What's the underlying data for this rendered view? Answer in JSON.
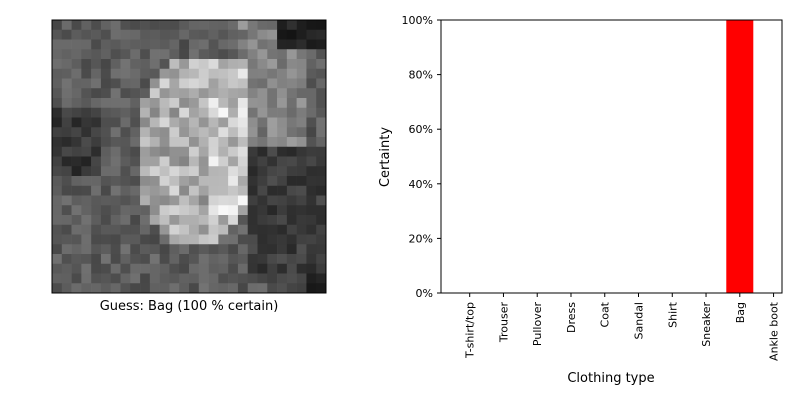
{
  "image_panel": {
    "caption": "Guess: Bag (100 % certain)",
    "pixels_source": "28x28 grayscale thumbnail (approximation)"
  },
  "chart_data": {
    "type": "bar",
    "categories": [
      "T-shirt/top",
      "Trouser",
      "Pullover",
      "Dress",
      "Coat",
      "Sandal",
      "Shirt",
      "Sneaker",
      "Bag",
      "Ankle boot"
    ],
    "values": [
      0,
      0,
      0,
      0,
      0,
      0,
      0,
      0,
      100,
      0
    ],
    "xlabel": "Clothing type",
    "ylabel": "Certainty",
    "ylim": [
      0,
      100
    ],
    "yticks": [
      "0%",
      "20%",
      "40%",
      "60%",
      "80%",
      "100%"
    ],
    "grid": false,
    "bar_color": "#ff0000",
    "highlight_category": "Bag"
  }
}
